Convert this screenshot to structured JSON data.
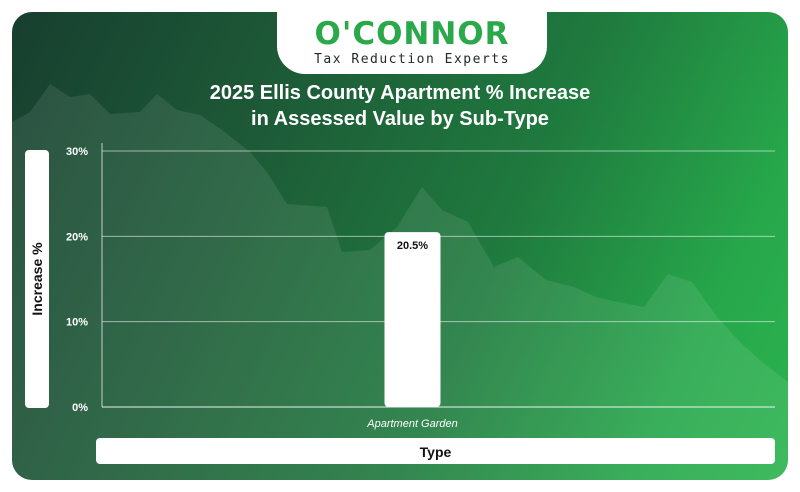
{
  "brand": {
    "name": "O'CONNOR",
    "tagline": "Tax Reduction Experts"
  },
  "colors": {
    "brand_green": "#2aa84a",
    "bar": "#ffffff",
    "background_dark": "#173f2f"
  },
  "chart_data": {
    "type": "bar",
    "title": "2025 Ellis County Apartment % Increase in Assessed Value by Sub-Type",
    "title_lines": [
      "2025 Ellis County Apartment % Increase",
      "in Assessed Value by Sub-Type"
    ],
    "xlabel": "Type",
    "ylabel": "Increase %",
    "categories": [
      "Apartment Garden"
    ],
    "values": [
      20.5
    ],
    "data_labels": [
      "20.5%"
    ],
    "ylim": [
      0,
      30
    ],
    "yticks": [
      0,
      10,
      20,
      30
    ],
    "ytick_labels": [
      "0%",
      "10%",
      "20%",
      "30%"
    ],
    "grid": true,
    "legend": "none"
  }
}
